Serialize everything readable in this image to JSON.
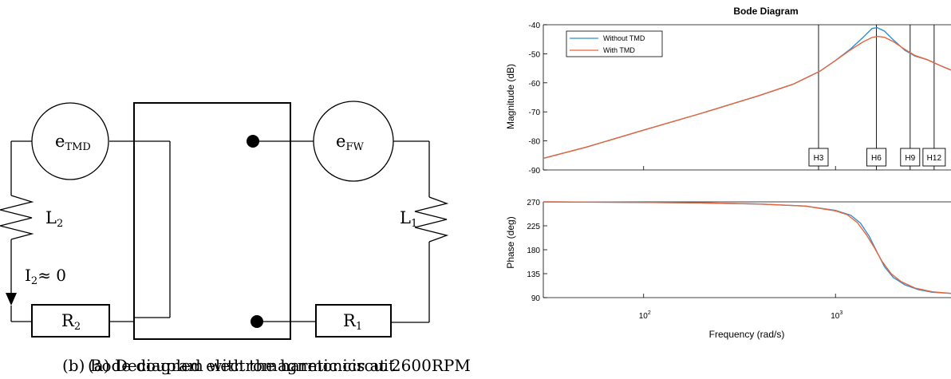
{
  "circuit": {
    "source_tmd": {
      "base": "e",
      "sub": "TMD"
    },
    "source_fw": {
      "base": "e",
      "sub": "FW"
    },
    "inductor_2": {
      "base": "L",
      "sub": "2"
    },
    "inductor_1": {
      "base": "L",
      "sub": "1"
    },
    "current": {
      "base": "I",
      "sub": "2",
      "rest": "≈ 0"
    },
    "resistor_2": {
      "base": "R",
      "sub": "2"
    },
    "resistor_1": {
      "base": "R",
      "sub": "1"
    },
    "caption": "(a) Decoupled electromagnetic circuit"
  },
  "bode": {
    "caption": "(b) Bode diagram with the harmonics at 2600RPM",
    "colors": {
      "without_tmd": "#2E8FD8",
      "with_tmd": "#E8653A",
      "axes": "#000000"
    },
    "chart_data": {
      "type": "line",
      "title": "Bode Diagram",
      "xlabel": "Frequency  (rad/s)",
      "x_scale": "log",
      "xlim": [
        30,
        4000
      ],
      "x_ticks": [
        {
          "value": 100,
          "base": "10",
          "exp": "2"
        },
        {
          "value": 1000,
          "base": "10",
          "exp": "3"
        }
      ],
      "legend_position": "top-left",
      "legend": [
        "Without TMD",
        "With TMD"
      ],
      "magnitude": {
        "ylabel": "Magnitude (dB)",
        "ylim": [
          -90,
          -40
        ],
        "yticks": [
          "-40",
          "-50",
          "-60",
          "-70",
          "-80",
          "-90"
        ],
        "series": [
          {
            "name": "Without TMD",
            "x": [
              30,
              50,
              100,
              200,
              400,
              600,
              830,
              1000,
              1200,
              1400,
              1550,
              1650,
              1800,
              2000,
              2300,
              2600,
              3000,
              3500,
              4000
            ],
            "y": [
              -86,
              -82.2,
              -76.3,
              -70.5,
              -64.4,
              -60.5,
              -56.0,
              -52.3,
              -48.3,
              -44.2,
              -41.3,
              -41.0,
              -42.2,
              -45.2,
              -48.8,
              -50.8,
              -52.0,
              -54.0,
              -55.6
            ]
          },
          {
            "name": "With TMD",
            "x": [
              30,
              50,
              100,
              200,
              400,
              600,
              830,
              1000,
              1200,
              1400,
              1550,
              1650,
              1800,
              2000,
              2300,
              2600,
              3000,
              3500,
              4000
            ],
            "y": [
              -86,
              -82.2,
              -76.3,
              -70.5,
              -64.4,
              -60.5,
              -56.0,
              -52.3,
              -48.6,
              -45.8,
              -44.4,
              -44.0,
              -44.3,
              -45.8,
              -48.5,
              -50.6,
              -52.0,
              -54.0,
              -55.6
            ]
          }
        ],
        "harmonics": [
          {
            "label": "H3",
            "x": 816
          },
          {
            "label": "H6",
            "x": 1633
          },
          {
            "label": "H9",
            "x": 2450
          },
          {
            "label": "H12",
            "x": 3267
          }
        ]
      },
      "phase": {
        "ylabel": "Phase (deg)",
        "ylim": [
          90,
          270
        ],
        "yticks": [
          "270",
          "225",
          "180",
          "135",
          "90"
        ],
        "series": [
          {
            "name": "Without TMD",
            "x": [
              30,
              100,
              200,
              400,
              700,
              1000,
              1200,
              1350,
              1500,
              1650,
              1800,
              2000,
              2300,
              2700,
              3200,
              4000
            ],
            "y": [
              270,
              269,
              268,
              266,
              262,
              254,
              245,
              230,
              205,
              175,
              148,
              128,
              114,
              105,
              100,
              98
            ]
          },
          {
            "name": "With TMD",
            "x": [
              30,
              100,
              200,
              400,
              700,
              1000,
              1150,
              1300,
              1450,
              1600,
              1750,
              1950,
              2200,
              2600,
              3200,
              4000
            ],
            "y": [
              270,
              269,
              268,
              266,
              262,
              253,
              246,
              231,
              208,
              183,
              158,
              135,
              120,
              108,
              101,
              98
            ]
          }
        ]
      }
    }
  }
}
